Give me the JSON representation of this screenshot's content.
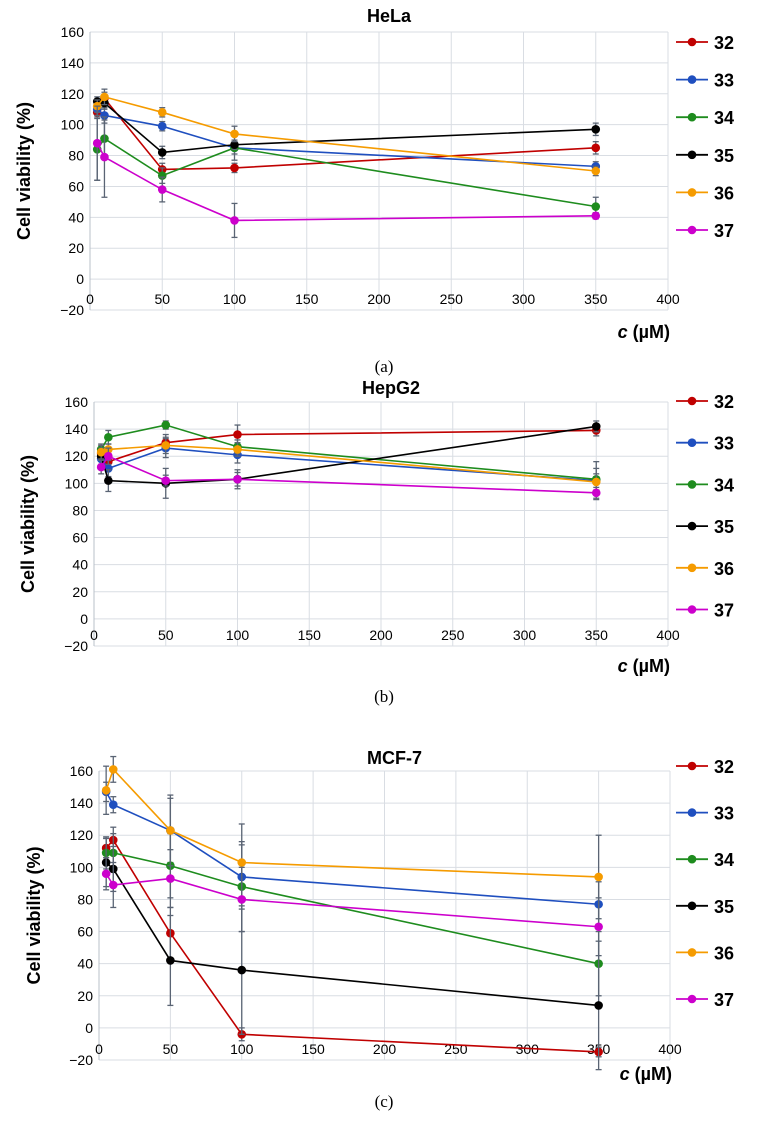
{
  "chart_data": [
    {
      "type": "line",
      "title": "HeLa",
      "ylabel": "Cell viability (%)",
      "xlabel_italic": "c",
      "xlabel_unit": "(µM)",
      "panel_label": "(a)",
      "xlim": [
        0,
        400
      ],
      "ylim": [
        -20,
        160
      ],
      "xticks": [
        0,
        50,
        100,
        150,
        200,
        250,
        300,
        350,
        400
      ],
      "yticks": [
        -20,
        0,
        20,
        40,
        60,
        80,
        100,
        120,
        140,
        160
      ],
      "ytick_labels": [
        "−20",
        "0",
        "20",
        "40",
        "60",
        "80",
        "100",
        "120",
        "140",
        "160"
      ],
      "series": [
        {
          "name": "32",
          "color": "#c00000",
          "x": [
            5,
            10,
            50,
            100,
            350
          ],
          "y": [
            108,
            117,
            71,
            72,
            85
          ],
          "err": [
            3,
            4,
            4,
            3,
            4
          ]
        },
        {
          "name": "33",
          "color": "#1f4fbf",
          "x": [
            5,
            10,
            50,
            100,
            350
          ],
          "y": [
            110,
            106,
            99,
            85,
            73
          ],
          "err": [
            4,
            5,
            3,
            4,
            3
          ]
        },
        {
          "name": "34",
          "color": "#1e8c1e",
          "x": [
            5,
            10,
            50,
            100,
            350
          ],
          "y": [
            84,
            91,
            67,
            85,
            47
          ],
          "err": [
            20,
            12,
            5,
            8,
            6
          ]
        },
        {
          "name": "35",
          "color": "#000000",
          "x": [
            5,
            10,
            50,
            100,
            350
          ],
          "y": [
            115,
            114,
            82,
            87,
            97
          ],
          "err": [
            3,
            4,
            4,
            3,
            4
          ]
        },
        {
          "name": "36",
          "color": "#f59b00",
          "x": [
            5,
            10,
            50,
            100,
            350
          ],
          "y": [
            112,
            118,
            108,
            94,
            70
          ],
          "err": [
            4,
            5,
            3,
            5,
            3
          ]
        },
        {
          "name": "37",
          "color": "#cc00cc",
          "x": [
            5,
            10,
            50,
            100,
            350
          ],
          "y": [
            88,
            79,
            58,
            38,
            41
          ],
          "err": [
            24,
            26,
            8,
            11,
            2
          ]
        }
      ]
    },
    {
      "type": "line",
      "title": "HepG2",
      "ylabel": "Cell viability (%)",
      "xlabel_italic": "c",
      "xlabel_unit": "(µM)",
      "panel_label": "(b)",
      "xlim": [
        0,
        400
      ],
      "ylim": [
        -20,
        160
      ],
      "xticks": [
        0,
        50,
        100,
        150,
        200,
        250,
        300,
        350,
        400
      ],
      "yticks": [
        -20,
        0,
        20,
        40,
        60,
        80,
        100,
        120,
        140,
        160
      ],
      "ytick_labels": [
        "−20",
        "0",
        "20",
        "40",
        "60",
        "80",
        "100",
        "120",
        "140",
        "160"
      ],
      "series": [
        {
          "name": "32",
          "color": "#c00000",
          "x": [
            5,
            10,
            50,
            100,
            350
          ],
          "y": [
            122,
            116,
            130,
            136,
            139
          ],
          "err": [
            4,
            6,
            6,
            7,
            4
          ]
        },
        {
          "name": "33",
          "color": "#1f4fbf",
          "x": [
            5,
            10,
            50,
            100,
            350
          ],
          "y": [
            118,
            111,
            126,
            121,
            102
          ],
          "err": [
            5,
            6,
            7,
            6,
            14
          ]
        },
        {
          "name": "34",
          "color": "#1e8c1e",
          "x": [
            5,
            10,
            50,
            100,
            350
          ],
          "y": [
            125,
            134,
            143,
            127,
            103
          ],
          "err": [
            4,
            5,
            3,
            5,
            8
          ]
        },
        {
          "name": "35",
          "color": "#000000",
          "x": [
            5,
            10,
            50,
            100,
            350
          ],
          "y": [
            120,
            102,
            100,
            103,
            142
          ],
          "err": [
            6,
            8,
            11,
            7,
            4
          ]
        },
        {
          "name": "36",
          "color": "#f59b00",
          "x": [
            5,
            10,
            50,
            100,
            350
          ],
          "y": [
            123,
            125,
            128,
            125,
            101
          ],
          "err": [
            5,
            4,
            6,
            5,
            6
          ]
        },
        {
          "name": "37",
          "color": "#cc00cc",
          "x": [
            5,
            10,
            50,
            100,
            350
          ],
          "y": [
            112,
            120,
            102,
            103,
            93
          ],
          "err": [
            5,
            6,
            4,
            5,
            4
          ]
        }
      ]
    },
    {
      "type": "line",
      "title": "MCF-7",
      "ylabel": "Cell viability (%)",
      "xlabel_italic": "c",
      "xlabel_unit": "(µM)",
      "panel_label": "(c)",
      "xlim": [
        0,
        400
      ],
      "ylim": [
        -20,
        160
      ],
      "xticks": [
        0,
        50,
        100,
        150,
        200,
        250,
        300,
        350,
        400
      ],
      "yticks": [
        -20,
        0,
        20,
        40,
        60,
        80,
        100,
        120,
        140,
        160
      ],
      "ytick_labels": [
        "−20",
        "0",
        "20",
        "40",
        "60",
        "80",
        "100",
        "120",
        "140",
        "160"
      ],
      "series": [
        {
          "name": "32",
          "color": "#c00000",
          "x": [
            5,
            10,
            50,
            100,
            350
          ],
          "y": [
            112,
            117,
            59,
            -4,
            -15
          ],
          "err": [
            6,
            8,
            16,
            4,
            3
          ]
        },
        {
          "name": "33",
          "color": "#1f4fbf",
          "x": [
            5,
            10,
            50,
            100,
            350
          ],
          "y": [
            147,
            139,
            123,
            94,
            77
          ],
          "err": [
            6,
            5,
            20,
            20,
            14
          ]
        },
        {
          "name": "34",
          "color": "#1e8c1e",
          "x": [
            5,
            10,
            50,
            100,
            350
          ],
          "y": [
            109,
            109,
            101,
            88,
            40
          ],
          "err": [
            10,
            12,
            20,
            28,
            20
          ]
        },
        {
          "name": "35",
          "color": "#000000",
          "x": [
            5,
            10,
            50,
            100,
            350
          ],
          "y": [
            103,
            99,
            42,
            36,
            14
          ],
          "err": [
            15,
            14,
            28,
            40,
            40
          ]
        },
        {
          "name": "36",
          "color": "#f59b00",
          "x": [
            5,
            10,
            50,
            100,
            350
          ],
          "y": [
            148,
            161,
            123,
            103,
            94
          ],
          "err": [
            15,
            8,
            22,
            24,
            26
          ]
        },
        {
          "name": "37",
          "color": "#cc00cc",
          "x": [
            5,
            10,
            50,
            100,
            350
          ],
          "y": [
            96,
            89,
            93,
            80,
            63
          ],
          "err": [
            10,
            14,
            18,
            20,
            18
          ]
        }
      ]
    }
  ]
}
